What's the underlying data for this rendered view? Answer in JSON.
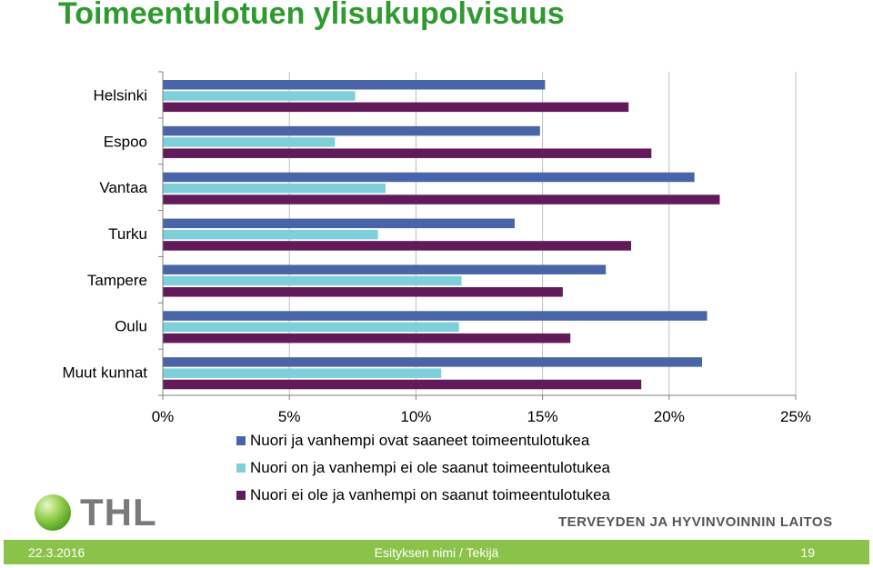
{
  "title": "Toimeentulotuen ylisukupolvisuus",
  "chart_data": {
    "type": "bar",
    "orientation": "horizontal",
    "categories": [
      "Helsinki",
      "Espoo",
      "Vantaa",
      "Turku",
      "Tampere",
      "Oulu",
      "Muut kunnat"
    ],
    "series": [
      {
        "name": "Nuori ja vanhempi ovat saaneet toimeentulotukea",
        "color": "#4a64a8",
        "values": [
          15.1,
          14.9,
          21.0,
          13.9,
          17.5,
          21.5,
          21.3
        ]
      },
      {
        "name": "Nuori on ja vanhempi ei ole saanut toimeentulotukea",
        "color": "#7ecfd9",
        "values": [
          7.6,
          6.8,
          8.8,
          8.5,
          11.8,
          11.7,
          11.0
        ]
      },
      {
        "name": "Nuori ei ole ja vanhempi on saanut toimeentulotukea",
        "color": "#621b5a",
        "values": [
          18.4,
          19.3,
          22.0,
          18.5,
          15.8,
          16.1,
          18.9
        ]
      }
    ],
    "xlim": [
      0,
      25
    ],
    "ticks": [
      0,
      5,
      10,
      15,
      20,
      25
    ],
    "tick_labels": [
      "0%",
      "5%",
      "10%",
      "15%",
      "20%",
      "25%"
    ],
    "gridlines": true,
    "legend_position": "bottom"
  },
  "logo": {
    "text": "THL"
  },
  "org_name": "TERVEYDEN JA HYVINVOINNIN LAITOS",
  "footer": {
    "date": "22.3.2016",
    "center": "Esityksen nimi / Tekijä",
    "page": "19"
  }
}
